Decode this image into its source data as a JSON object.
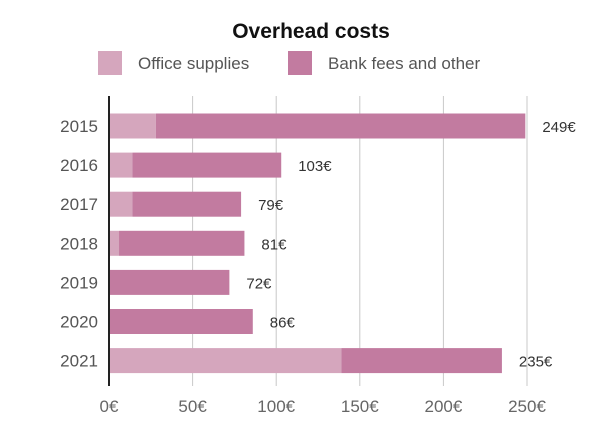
{
  "chart_data": {
    "type": "bar",
    "orientation": "horizontal",
    "stacked": true,
    "title": "Overhead costs",
    "xlabel": "",
    "ylabel": "",
    "categories": [
      "2015",
      "2016",
      "2017",
      "2018",
      "2019",
      "2020",
      "2021"
    ],
    "series": [
      {
        "name": "Office supplies",
        "color": "#d5a6bd",
        "values": [
          28,
          14,
          14,
          6,
          0,
          0,
          139
        ]
      },
      {
        "name": "Bank fees and other",
        "color": "#c27ba0",
        "values": [
          221,
          89,
          65,
          75,
          72,
          86,
          96
        ]
      }
    ],
    "data_labels": [
      "249€",
      "103€",
      "79€",
      "81€",
      "72€",
      "86€",
      "235€"
    ],
    "x_ticks": [
      0,
      50,
      100,
      150,
      200,
      250
    ],
    "x_tick_labels": [
      "0€",
      "50€",
      "100€",
      "150€",
      "200€",
      "250€"
    ],
    "xlim": [
      0,
      250
    ],
    "grid": true,
    "legend_position": "top"
  }
}
